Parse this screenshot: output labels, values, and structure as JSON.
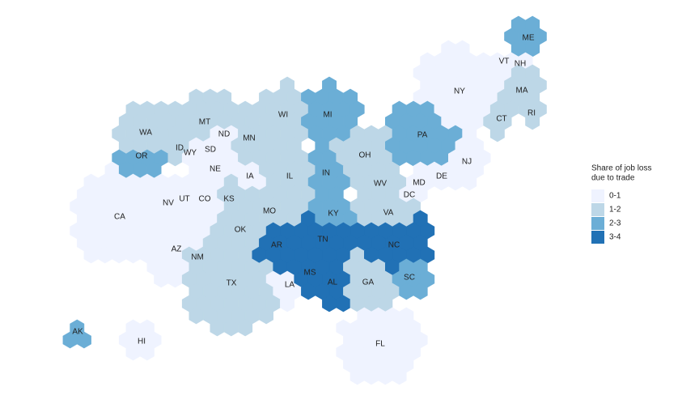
{
  "map": {
    "states": [
      {
        "label": "ME",
        "color": "#6baed6"
      },
      {
        "label": "VT",
        "color": "#eff3ff"
      },
      {
        "label": "NH",
        "color": "#eff3ff"
      },
      {
        "label": "MA",
        "color": "#bdd7e7"
      },
      {
        "label": "CT",
        "color": "#bdd7e7"
      },
      {
        "label": "RI",
        "color": "#bdd7e7"
      },
      {
        "label": "NY",
        "color": "#eff3ff"
      },
      {
        "label": "PA",
        "color": "#6baed6"
      },
      {
        "label": "NJ",
        "color": "#eff3ff"
      },
      {
        "label": "DE",
        "color": "#eff3ff"
      },
      {
        "label": "MD",
        "color": "#eff3ff"
      },
      {
        "label": "DC",
        "color": "#eff3ff"
      },
      {
        "label": "VA",
        "color": "#bdd7e7"
      },
      {
        "label": "WV",
        "color": "#bdd7e7"
      },
      {
        "label": "OH",
        "color": "#bdd7e7"
      },
      {
        "label": "MI",
        "color": "#6baed6"
      },
      {
        "label": "WI",
        "color": "#bdd7e7"
      },
      {
        "label": "MN",
        "color": "#bdd7e7"
      },
      {
        "label": "IL",
        "color": "#bdd7e7"
      },
      {
        "label": "IN",
        "color": "#6baed6"
      },
      {
        "label": "KY",
        "color": "#6baed6"
      },
      {
        "label": "TN",
        "color": "#2171b5"
      },
      {
        "label": "NC",
        "color": "#2171b5"
      },
      {
        "label": "SC",
        "color": "#6baed6"
      },
      {
        "label": "GA",
        "color": "#bdd7e7"
      },
      {
        "label": "AL",
        "color": "#2171b5"
      },
      {
        "label": "MS",
        "color": "#2171b5"
      },
      {
        "label": "AR",
        "color": "#2171b5"
      },
      {
        "label": "LA",
        "color": "#eff3ff"
      },
      {
        "label": "FL",
        "color": "#eff3ff"
      },
      {
        "label": "TX",
        "color": "#bdd7e7"
      },
      {
        "label": "OK",
        "color": "#bdd7e7"
      },
      {
        "label": "MO",
        "color": "#bdd7e7"
      },
      {
        "label": "IA",
        "color": "#eff3ff"
      },
      {
        "label": "KS",
        "color": "#bdd7e7"
      },
      {
        "label": "NE",
        "color": "#eff3ff"
      },
      {
        "label": "SD",
        "color": "#eff3ff"
      },
      {
        "label": "ND",
        "color": "#eff3ff"
      },
      {
        "label": "MT",
        "color": "#bdd7e7"
      },
      {
        "label": "WA",
        "color": "#bdd7e7"
      },
      {
        "label": "OR",
        "color": "#6baed6"
      },
      {
        "label": "ID",
        "color": "#bdd7e7"
      },
      {
        "label": "WY",
        "color": "#eff3ff"
      },
      {
        "label": "CO",
        "color": "#eff3ff"
      },
      {
        "label": "UT",
        "color": "#eff3ff"
      },
      {
        "label": "NV",
        "color": "#eff3ff"
      },
      {
        "label": "CA",
        "color": "#eff3ff"
      },
      {
        "label": "AZ",
        "color": "#eff3ff"
      },
      {
        "label": "NM",
        "color": "#bdd7e7"
      },
      {
        "label": "AK",
        "color": "#6baed6"
      },
      {
        "label": "HI",
        "color": "#eff3ff"
      }
    ],
    "legend": {
      "title": [
        "Share of job loss",
        "due to trade"
      ],
      "items": [
        {
          "label": "0-1",
          "color": "#eff3ff"
        },
        {
          "label": "1-2",
          "color": "#bdd7e7"
        },
        {
          "label": "2-3",
          "color": "#6baed6"
        },
        {
          "label": "3-4",
          "color": "#2171b5"
        }
      ]
    }
  }
}
